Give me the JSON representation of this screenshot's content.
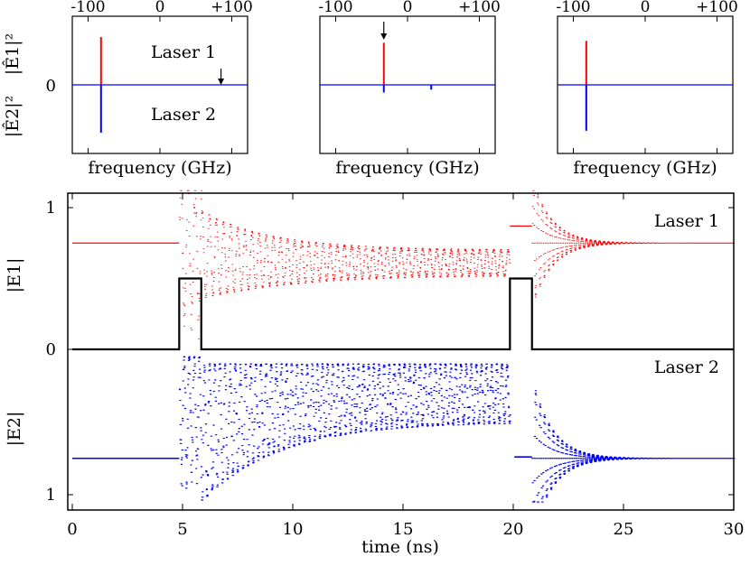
{
  "chart_data": [
    {
      "type": "line",
      "panel": "spectrum-1",
      "xlabel": "frequency (GHz)",
      "x_ticks": [
        "-100",
        "0",
        "+100"
      ],
      "xlim": [
        -100,
        100
      ],
      "ylabel_top": "|Ê1|²",
      "ylabel_bottom": "|Ê2|²",
      "y_tick": "0",
      "legend_top": "Laser 1",
      "legend_bottom": "Laser 2",
      "arrow_at_frequency": 85,
      "series": [
        {
          "name": "Laser 1",
          "color": "#ff0000",
          "peaks": [
            {
              "frequency": -82,
              "height": 1.0
            }
          ]
        },
        {
          "name": "Laser 2",
          "color": "#0000ff",
          "peaks": [
            {
              "frequency": -82,
              "height": 1.0
            }
          ]
        }
      ]
    },
    {
      "type": "line",
      "panel": "spectrum-2",
      "xlabel": "frequency (GHz)",
      "x_ticks": [
        "-100",
        "0",
        "+100"
      ],
      "xlim": [
        -100,
        100
      ],
      "arrow_at_frequency": -33,
      "series": [
        {
          "name": "Laser 1",
          "color": "#ff0000",
          "peaks": [
            {
              "frequency": -33,
              "height": 0.88
            }
          ]
        },
        {
          "name": "Laser 2",
          "color": "#0000ff",
          "peaks": [
            {
              "frequency": -33,
              "height": 0.16
            },
            {
              "frequency": 33,
              "height": 0.1
            }
          ]
        }
      ]
    },
    {
      "type": "line",
      "panel": "spectrum-3",
      "xlabel": "frequency (GHz)",
      "x_ticks": [
        "-100",
        "0",
        "+100"
      ],
      "xlim": [
        -100,
        100
      ],
      "series": [
        {
          "name": "Laser 1",
          "color": "#ff0000",
          "peaks": [
            {
              "frequency": -82,
              "height": 0.92
            }
          ]
        },
        {
          "name": "Laser 2",
          "color": "#0000ff",
          "peaks": [
            {
              "frequency": -82,
              "height": 0.96
            }
          ]
        }
      ]
    },
    {
      "type": "scatter",
      "panel": "time-series",
      "xlabel": "time (ns)",
      "xlim": [
        0,
        30
      ],
      "x_ticks": [
        0,
        5,
        10,
        15,
        20,
        25,
        30
      ],
      "ylabel_top": "|E1|",
      "ylabel_bottom": "|E2|",
      "y_ticks": [
        "1",
        "0",
        "1"
      ],
      "legend_top": "Laser 1",
      "legend_bottom": "Laser 2",
      "steady_amplitude": 0.75,
      "oscillation_range": [
        0.52,
        0.7
      ],
      "laser1_plateau": 0.87,
      "laser2_plateau_band": [
        0.1,
        0.5
      ],
      "laser2_plateau_after_pulse": 0.74,
      "pulses": [
        {
          "start": 4.85,
          "end": 5.85,
          "height": 0.5
        },
        {
          "start": 19.85,
          "end": 20.85,
          "height": 0.5
        }
      ],
      "series": [
        {
          "name": "Laser 1",
          "color": "#ff0000"
        },
        {
          "name": "Laser 2",
          "color": "#0000ff"
        },
        {
          "name": "pulse",
          "color": "#000000"
        }
      ]
    }
  ]
}
